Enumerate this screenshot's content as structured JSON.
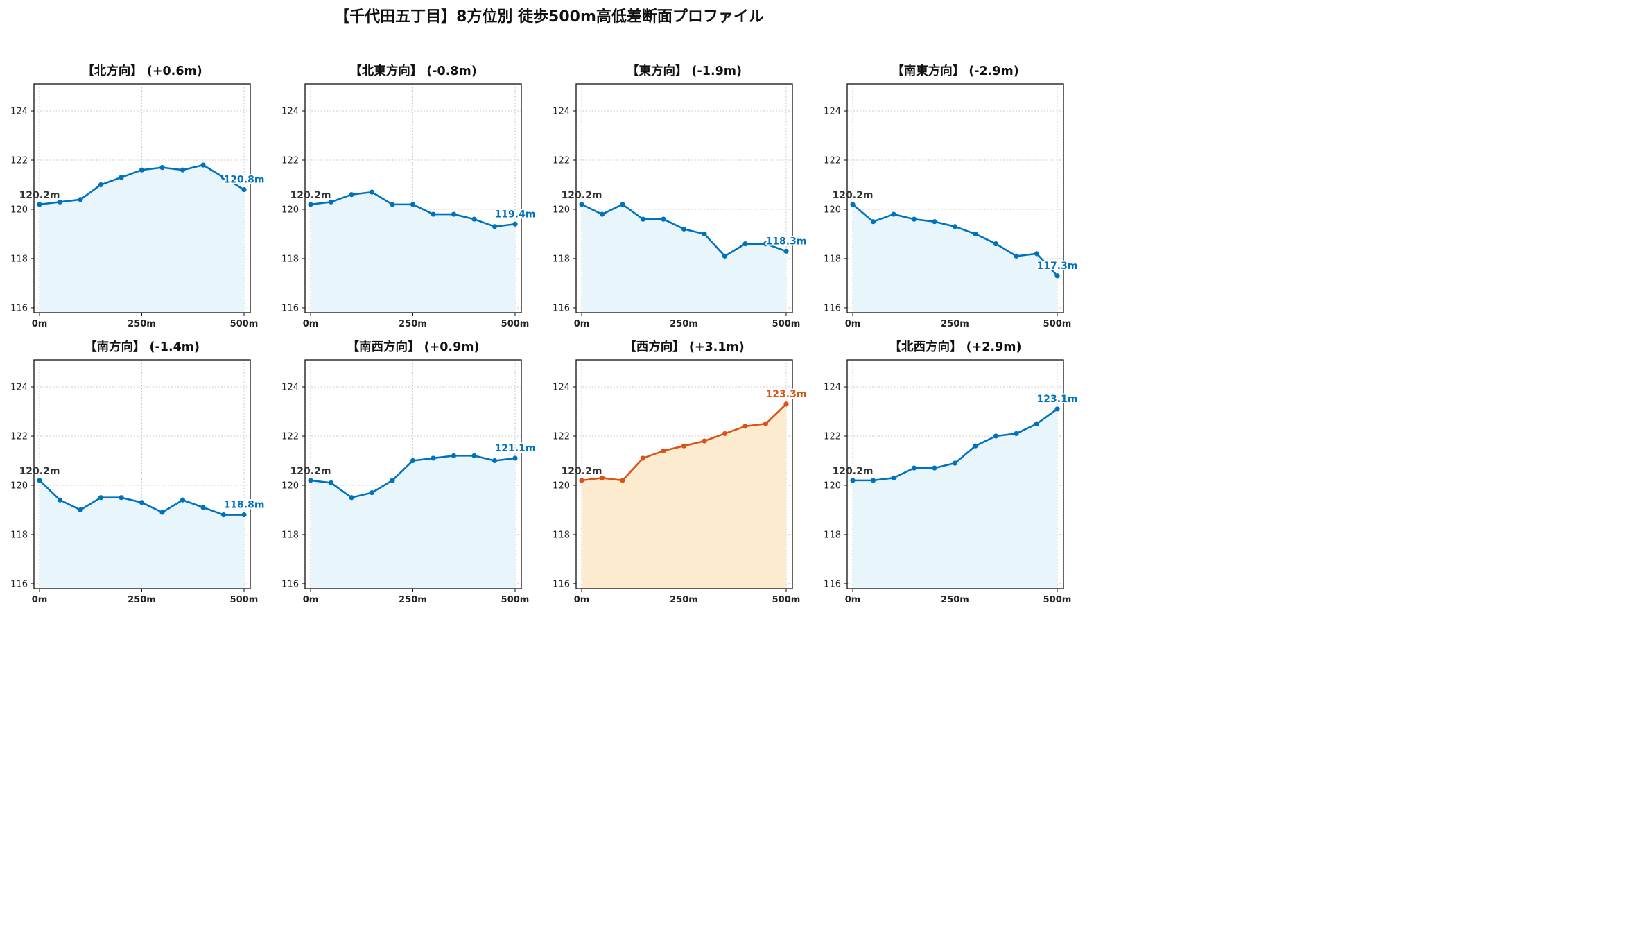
{
  "title": "【千代田五丁目】8方位別 徒歩500m高低差断面プロファイル",
  "colors": {
    "line_default": "#0072bd",
    "fill_default": "#e8f6fc",
    "line_highlight": "#d95319",
    "fill_highlight": "#fdebd0",
    "grid": "#c8c8c8",
    "start_label": "#333333"
  },
  "chart_data": [
    {
      "type": "area",
      "title": "【北方向】 (+0.6m)",
      "x": [
        0,
        50,
        100,
        150,
        200,
        250,
        300,
        350,
        400,
        450,
        500
      ],
      "y": [
        120.2,
        120.3,
        120.4,
        121.0,
        121.3,
        121.6,
        121.7,
        121.6,
        121.8,
        121.3,
        120.8
      ],
      "start_label": "120.2m",
      "end_label": "120.8m",
      "highlight": false,
      "xticks": [
        "0m",
        "250m",
        "500m"
      ],
      "yticks": [
        "116",
        "118",
        "120",
        "122",
        "124"
      ],
      "xlim": [
        0,
        500
      ],
      "ylim": [
        115.8,
        125.1
      ],
      "grid": true
    },
    {
      "type": "area",
      "title": "【北東方向】 (-0.8m)",
      "x": [
        0,
        50,
        100,
        150,
        200,
        250,
        300,
        350,
        400,
        450,
        500
      ],
      "y": [
        120.2,
        120.3,
        120.6,
        120.7,
        120.2,
        120.2,
        119.8,
        119.8,
        119.6,
        119.3,
        119.4
      ],
      "start_label": "120.2m",
      "end_label": "119.4m",
      "highlight": false,
      "xticks": [
        "0m",
        "250m",
        "500m"
      ],
      "yticks": [
        "116",
        "118",
        "120",
        "122",
        "124"
      ],
      "xlim": [
        0,
        500
      ],
      "ylim": [
        115.8,
        125.1
      ],
      "grid": true
    },
    {
      "type": "area",
      "title": "【東方向】 (-1.9m)",
      "x": [
        0,
        50,
        100,
        150,
        200,
        250,
        300,
        350,
        400,
        450,
        500
      ],
      "y": [
        120.2,
        119.8,
        120.2,
        119.6,
        119.6,
        119.2,
        119.0,
        118.1,
        118.6,
        118.6,
        118.3
      ],
      "start_label": "120.2m",
      "end_label": "118.3m",
      "highlight": false,
      "xticks": [
        "0m",
        "250m",
        "500m"
      ],
      "yticks": [
        "116",
        "118",
        "120",
        "122",
        "124"
      ],
      "xlim": [
        0,
        500
      ],
      "ylim": [
        115.8,
        125.1
      ],
      "grid": true
    },
    {
      "type": "area",
      "title": "【南東方向】 (-2.9m)",
      "x": [
        0,
        50,
        100,
        150,
        200,
        250,
        300,
        350,
        400,
        450,
        500
      ],
      "y": [
        120.2,
        119.5,
        119.8,
        119.6,
        119.5,
        119.3,
        119.0,
        118.6,
        118.1,
        118.2,
        117.3
      ],
      "start_label": "120.2m",
      "end_label": "117.3m",
      "highlight": false,
      "xticks": [
        "0m",
        "250m",
        "500m"
      ],
      "yticks": [
        "116",
        "118",
        "120",
        "122",
        "124"
      ],
      "xlim": [
        0,
        500
      ],
      "ylim": [
        115.8,
        125.1
      ],
      "grid": true
    },
    {
      "type": "area",
      "title": "【南方向】 (-1.4m)",
      "x": [
        0,
        50,
        100,
        150,
        200,
        250,
        300,
        350,
        400,
        450,
        500
      ],
      "y": [
        120.2,
        119.4,
        119.0,
        119.5,
        119.5,
        119.3,
        118.9,
        119.4,
        119.1,
        118.8,
        118.8
      ],
      "start_label": "120.2m",
      "end_label": "118.8m",
      "highlight": false,
      "xticks": [
        "0m",
        "250m",
        "500m"
      ],
      "yticks": [
        "116",
        "118",
        "120",
        "122",
        "124"
      ],
      "xlim": [
        0,
        500
      ],
      "ylim": [
        115.8,
        125.1
      ],
      "grid": true
    },
    {
      "type": "area",
      "title": "【南西方向】 (+0.9m)",
      "x": [
        0,
        50,
        100,
        150,
        200,
        250,
        300,
        350,
        400,
        450,
        500
      ],
      "y": [
        120.2,
        120.1,
        119.5,
        119.7,
        120.2,
        121.0,
        121.1,
        121.2,
        121.2,
        121.0,
        121.1
      ],
      "start_label": "120.2m",
      "end_label": "121.1m",
      "highlight": false,
      "xticks": [
        "0m",
        "250m",
        "500m"
      ],
      "yticks": [
        "116",
        "118",
        "120",
        "122",
        "124"
      ],
      "xlim": [
        0,
        500
      ],
      "ylim": [
        115.8,
        125.1
      ],
      "grid": true
    },
    {
      "type": "area",
      "title": "【西方向】 (+3.1m)",
      "x": [
        0,
        50,
        100,
        150,
        200,
        250,
        300,
        350,
        400,
        450,
        500
      ],
      "y": [
        120.2,
        120.3,
        120.2,
        121.1,
        121.4,
        121.6,
        121.8,
        122.1,
        122.4,
        122.5,
        123.3
      ],
      "start_label": "120.2m",
      "end_label": "123.3m",
      "highlight": true,
      "xticks": [
        "0m",
        "250m",
        "500m"
      ],
      "yticks": [
        "116",
        "118",
        "120",
        "122",
        "124"
      ],
      "xlim": [
        0,
        500
      ],
      "ylim": [
        115.8,
        125.1
      ],
      "grid": true
    },
    {
      "type": "area",
      "title": "【北西方向】 (+2.9m)",
      "x": [
        0,
        50,
        100,
        150,
        200,
        250,
        300,
        350,
        400,
        450,
        500
      ],
      "y": [
        120.2,
        120.2,
        120.3,
        120.7,
        120.7,
        120.9,
        121.6,
        122.0,
        122.1,
        122.5,
        123.1
      ],
      "start_label": "120.2m",
      "end_label": "123.1m",
      "highlight": false,
      "xticks": [
        "0m",
        "250m",
        "500m"
      ],
      "yticks": [
        "116",
        "118",
        "120",
        "122",
        "124"
      ],
      "xlim": [
        0,
        500
      ],
      "ylim": [
        115.8,
        125.1
      ],
      "grid": true
    }
  ]
}
